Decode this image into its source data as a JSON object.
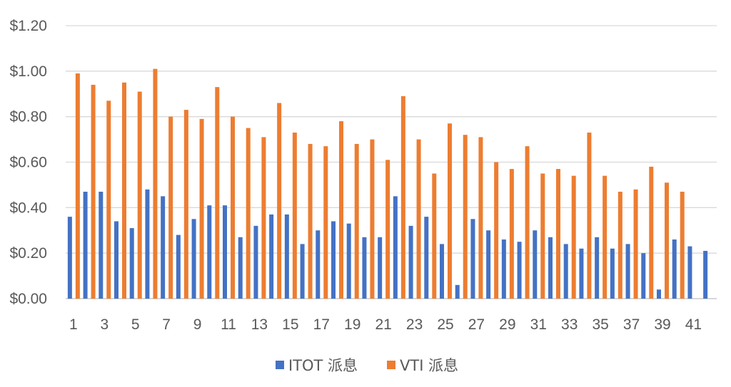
{
  "chart_data": {
    "type": "bar",
    "title": "",
    "xlabel": "",
    "ylabel": "",
    "ylim": [
      0,
      1.2
    ],
    "yticks": [
      0,
      0.2,
      0.4,
      0.6,
      0.8,
      1.0,
      1.2
    ],
    "ytick_labels": [
      "$0.00",
      "$0.20",
      "$0.40",
      "$0.60",
      "$0.80",
      "$1.00",
      "$1.20"
    ],
    "grid": "horizontal",
    "legend_position": "bottom",
    "categories": [
      1,
      2,
      3,
      4,
      5,
      6,
      7,
      8,
      9,
      10,
      11,
      12,
      13,
      14,
      15,
      16,
      17,
      18,
      19,
      20,
      21,
      22,
      23,
      24,
      25,
      26,
      27,
      28,
      29,
      30,
      31,
      32,
      33,
      34,
      35,
      36,
      37,
      38,
      39,
      40,
      41,
      42
    ],
    "xtick_labels": [
      "1",
      "",
      "3",
      "",
      "5",
      "",
      "7",
      "",
      "9",
      "",
      "11",
      "",
      "13",
      "",
      "15",
      "",
      "17",
      "",
      "19",
      "",
      "21",
      "",
      "23",
      "",
      "25",
      "",
      "27",
      "",
      "29",
      "",
      "31",
      "",
      "33",
      "",
      "35",
      "",
      "37",
      "",
      "39",
      "",
      "41",
      ""
    ],
    "series": [
      {
        "name": "ITOT 派息",
        "color": "#4472C4",
        "values": [
          0.36,
          0.47,
          0.47,
          0.34,
          0.31,
          0.48,
          0.45,
          0.28,
          0.35,
          0.41,
          0.41,
          0.27,
          0.32,
          0.37,
          0.37,
          0.24,
          0.3,
          0.34,
          0.33,
          0.27,
          0.27,
          0.45,
          0.32,
          0.36,
          0.24,
          0.06,
          0.35,
          0.3,
          0.26,
          0.25,
          0.3,
          0.27,
          0.24,
          0.22,
          0.27,
          0.22,
          0.24,
          0.2,
          0.04,
          0.26,
          0.23,
          0.21
        ]
      },
      {
        "name": "VTI 派息",
        "color": "#ED7D31",
        "values": [
          0.99,
          0.94,
          0.87,
          0.95,
          0.91,
          1.01,
          0.8,
          0.83,
          0.79,
          0.93,
          0.8,
          0.75,
          0.71,
          0.86,
          0.73,
          0.68,
          0.67,
          0.78,
          0.68,
          0.7,
          0.61,
          0.89,
          0.7,
          0.55,
          0.77,
          0.72,
          0.71,
          0.6,
          0.57,
          0.67,
          0.55,
          0.57,
          0.54,
          0.73,
          0.54,
          0.47,
          0.48,
          0.58,
          0.51,
          0.47,
          null,
          null
        ]
      }
    ]
  }
}
